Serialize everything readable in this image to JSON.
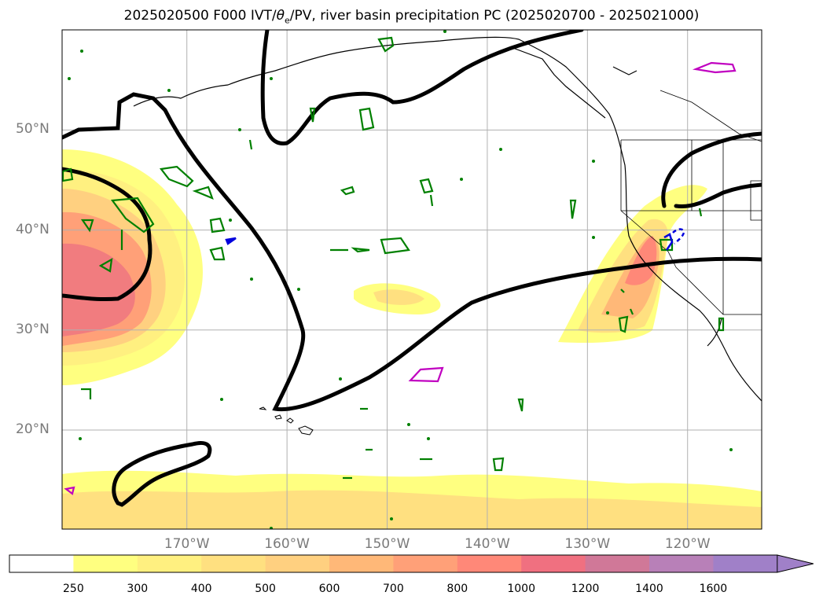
{
  "title_pre": "2025020500 F000 IVT/",
  "title_theta": "θ",
  "title_sub": "e",
  "title_post": "/PV, river basin precipitation PC (2025020700 - 2025021000)",
  "lat_labels": [
    "50°N",
    "40°N",
    "30°N",
    "20°N"
  ],
  "lat_values": [
    50,
    40,
    30,
    20
  ],
  "lon_labels": [
    "170°W",
    "160°W",
    "150°W",
    "140°W",
    "130°W",
    "120°W"
  ],
  "lon_values": [
    -170,
    -160,
    -150,
    -140,
    -130,
    -120
  ],
  "colorbar": {
    "levels": [
      "250",
      "300",
      "400",
      "500",
      "600",
      "700",
      "800",
      "1000",
      "1200",
      "1400",
      "1600"
    ],
    "colors": [
      "#ffffff",
      "#ffff80",
      "#fff080",
      "#ffe080",
      "#ffd080",
      "#ffb878",
      "#ffa078",
      "#ff8878",
      "#f07080",
      "#d07898",
      "#b880b8",
      "#a080c8"
    ],
    "extend": "max"
  },
  "colors": {
    "ivt_fill": "#ffff80",
    "pv_contour": "#000000",
    "theta_e_contour": "#008000",
    "precip_contour": "#0000dd",
    "magenta_contour": "#c000c0",
    "coastline": "#000000",
    "grid": "#b0b0b0"
  }
}
